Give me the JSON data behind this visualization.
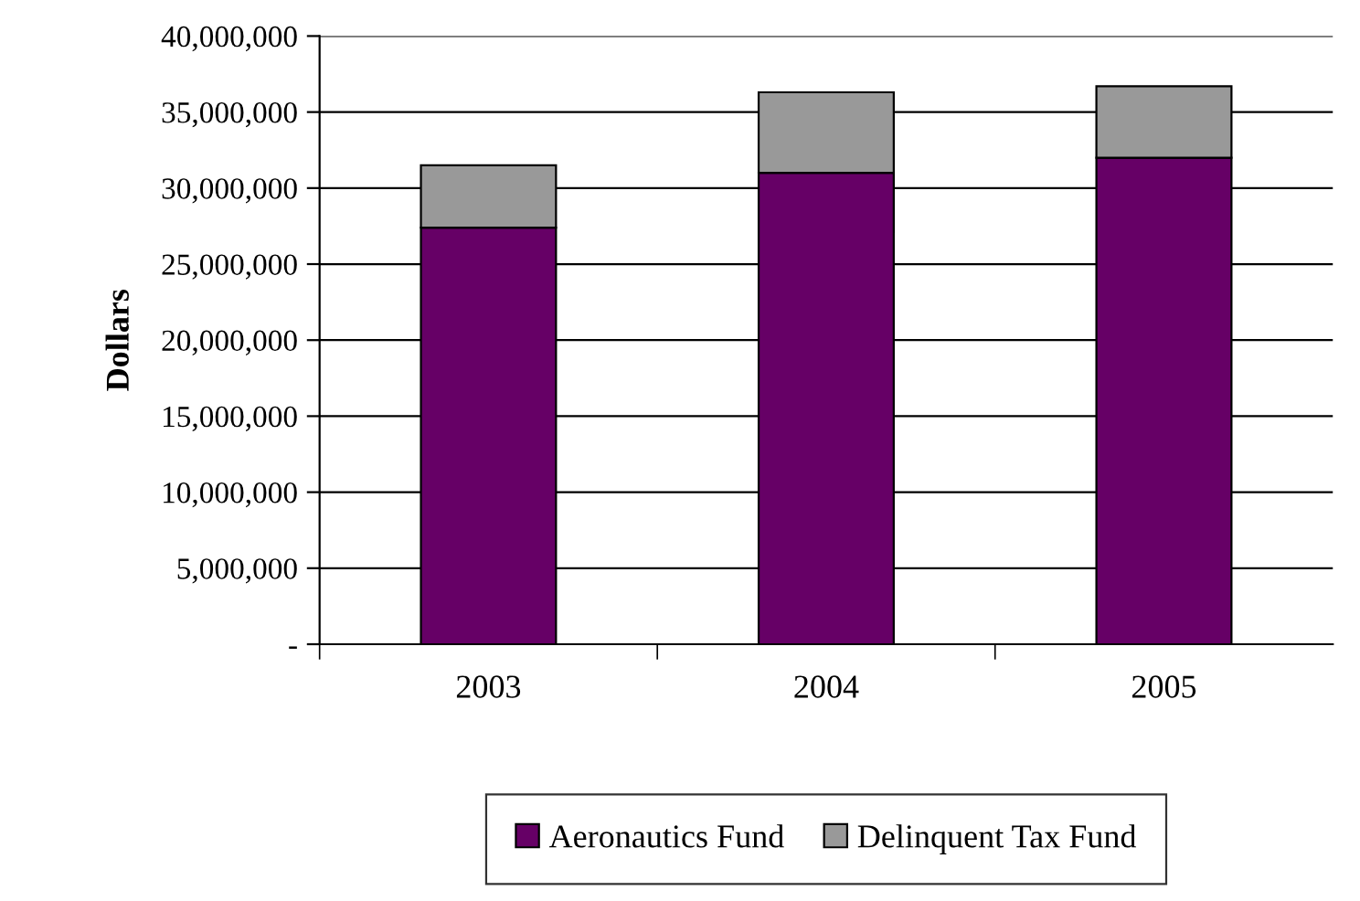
{
  "chart_data": {
    "type": "bar",
    "stacked": true,
    "ylabel": "Dollars",
    "categories": [
      "2003",
      "2004",
      "2005"
    ],
    "series": [
      {
        "name": "Aeronautics Fund",
        "color": "#660066",
        "values": [
          27400000,
          31000000,
          32000000
        ]
      },
      {
        "name": "Delinquent Tax Fund",
        "color": "#999999",
        "values": [
          4100000,
          5300000,
          4700000
        ]
      }
    ],
    "ylim": [
      0,
      40000000
    ],
    "yticks": [
      {
        "value": 0,
        "label": "-"
      },
      {
        "value": 5000000,
        "label": "5,000,000"
      },
      {
        "value": 10000000,
        "label": "10,000,000"
      },
      {
        "value": 15000000,
        "label": "15,000,000"
      },
      {
        "value": 20000000,
        "label": "20,000,000"
      },
      {
        "value": 25000000,
        "label": "25,000,000"
      },
      {
        "value": 30000000,
        "label": "30,000,000"
      },
      {
        "value": 35000000,
        "label": "35,000,000"
      },
      {
        "value": 40000000,
        "label": "40,000,000"
      }
    ],
    "grid": "y",
    "legend": "bottom"
  }
}
